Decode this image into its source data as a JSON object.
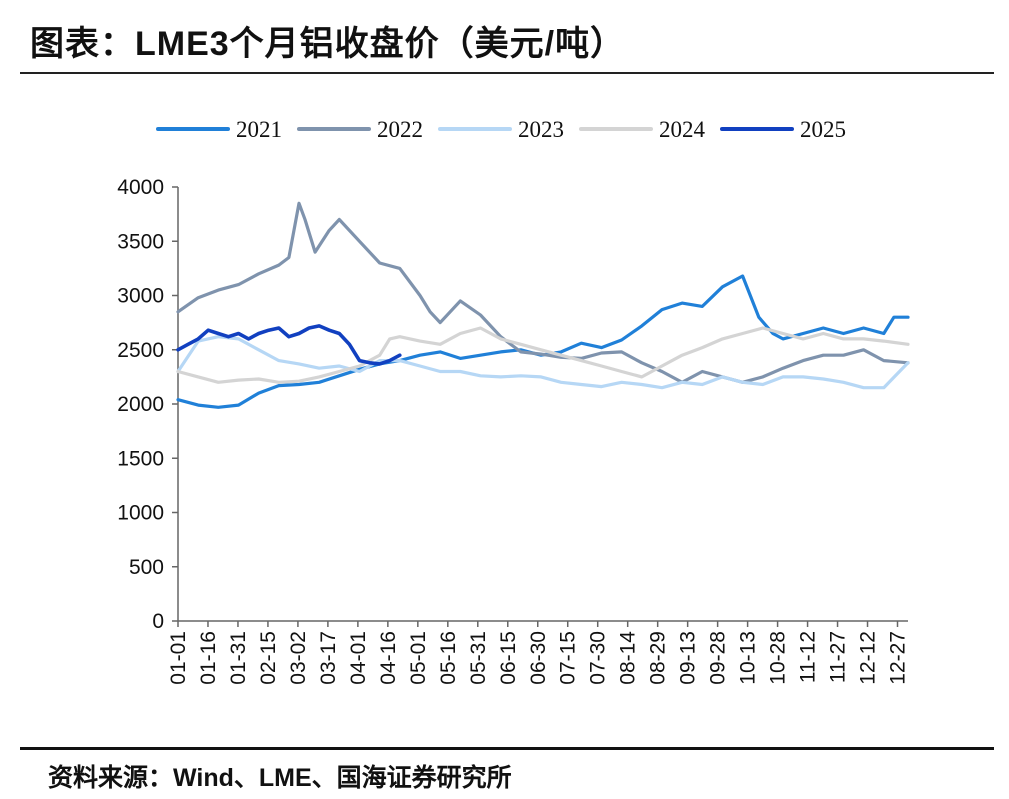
{
  "title": "图表：LME3个月铝收盘价（美元/吨）",
  "source": "资料来源：Wind、LME、国海证券研究所",
  "chart_data": {
    "type": "line",
    "title": "LME3个月铝收盘价（美元/吨）",
    "xlabel": "",
    "ylabel": "",
    "ylim": [
      0,
      4000
    ],
    "yticks": [
      0,
      500,
      1000,
      1500,
      2000,
      2500,
      3000,
      3500,
      4000
    ],
    "categories": [
      "01-01",
      "01-16",
      "01-31",
      "02-15",
      "03-02",
      "03-17",
      "04-01",
      "04-16",
      "05-01",
      "05-16",
      "05-31",
      "06-15",
      "06-30",
      "07-15",
      "07-30",
      "08-14",
      "08-29",
      "09-13",
      "09-28",
      "10-13",
      "10-28",
      "11-12",
      "11-27",
      "12-12",
      "12-27"
    ],
    "x_range": [
      0,
      362
    ],
    "legend_position": "top",
    "series": [
      {
        "name": "2021",
        "color": "#2080d8",
        "x": [
          0,
          10,
          20,
          30,
          40,
          50,
          60,
          70,
          80,
          90,
          100,
          110,
          120,
          130,
          140,
          150,
          160,
          170,
          180,
          190,
          200,
          210,
          220,
          230,
          240,
          250,
          260,
          270,
          280,
          288,
          295,
          300,
          310,
          320,
          330,
          340,
          350,
          355,
          362
        ],
        "values": [
          2040,
          1990,
          1970,
          1990,
          2100,
          2170,
          2180,
          2200,
          2260,
          2320,
          2370,
          2400,
          2450,
          2480,
          2420,
          2450,
          2480,
          2500,
          2450,
          2480,
          2560,
          2520,
          2590,
          2720,
          2870,
          2930,
          2900,
          3080,
          3180,
          2800,
          2650,
          2600,
          2650,
          2700,
          2650,
          2700,
          2650,
          2800,
          2800
        ]
      },
      {
        "name": "2022",
        "color": "#7f93ad",
        "x": [
          0,
          10,
          20,
          30,
          40,
          50,
          55,
          60,
          63,
          68,
          75,
          80,
          90,
          100,
          110,
          120,
          125,
          130,
          140,
          150,
          160,
          170,
          180,
          190,
          200,
          210,
          220,
          230,
          240,
          250,
          260,
          270,
          280,
          290,
          300,
          310,
          320,
          330,
          340,
          350,
          362
        ],
        "values": [
          2850,
          2980,
          3050,
          3100,
          3200,
          3280,
          3350,
          3850,
          3700,
          3400,
          3600,
          3700,
          3500,
          3300,
          3250,
          3000,
          2850,
          2750,
          2950,
          2820,
          2620,
          2480,
          2460,
          2430,
          2420,
          2470,
          2480,
          2380,
          2300,
          2200,
          2300,
          2250,
          2200,
          2250,
          2330,
          2400,
          2450,
          2450,
          2500,
          2400,
          2380
        ]
      },
      {
        "name": "2023",
        "color": "#b6d7f5",
        "x": [
          0,
          10,
          20,
          30,
          40,
          50,
          60,
          70,
          80,
          90,
          100,
          110,
          120,
          130,
          140,
          150,
          160,
          170,
          180,
          190,
          200,
          210,
          220,
          230,
          240,
          250,
          260,
          270,
          280,
          290,
          300,
          310,
          320,
          330,
          340,
          350,
          362
        ],
        "values": [
          2300,
          2580,
          2620,
          2600,
          2500,
          2400,
          2370,
          2330,
          2350,
          2300,
          2400,
          2400,
          2350,
          2300,
          2300,
          2260,
          2250,
          2260,
          2250,
          2200,
          2180,
          2160,
          2200,
          2180,
          2150,
          2200,
          2180,
          2250,
          2200,
          2180,
          2250,
          2250,
          2230,
          2200,
          2150,
          2150,
          2380
        ]
      },
      {
        "name": "2024",
        "color": "#d4d4d4",
        "x": [
          0,
          10,
          20,
          30,
          40,
          50,
          60,
          70,
          80,
          90,
          100,
          105,
          110,
          120,
          130,
          140,
          150,
          160,
          170,
          180,
          190,
          200,
          210,
          220,
          230,
          240,
          250,
          260,
          270,
          280,
          290,
          300,
          310,
          320,
          330,
          340,
          350,
          362
        ],
        "values": [
          2300,
          2250,
          2200,
          2220,
          2230,
          2200,
          2210,
          2250,
          2300,
          2350,
          2450,
          2600,
          2620,
          2580,
          2550,
          2650,
          2700,
          2600,
          2550,
          2500,
          2450,
          2400,
          2350,
          2300,
          2250,
          2350,
          2450,
          2520,
          2600,
          2650,
          2700,
          2650,
          2600,
          2650,
          2600,
          2600,
          2580,
          2550
        ]
      },
      {
        "name": "2025",
        "color": "#1140c0",
        "x": [
          0,
          5,
          10,
          15,
          20,
          25,
          30,
          35,
          40,
          45,
          50,
          55,
          60,
          65,
          70,
          75,
          80,
          85,
          90,
          95,
          100,
          105,
          110
        ],
        "values": [
          2500,
          2550,
          2600,
          2680,
          2650,
          2620,
          2650,
          2600,
          2650,
          2680,
          2700,
          2620,
          2650,
          2700,
          2720,
          2680,
          2650,
          2550,
          2400,
          2380,
          2370,
          2400,
          2450
        ]
      }
    ]
  }
}
